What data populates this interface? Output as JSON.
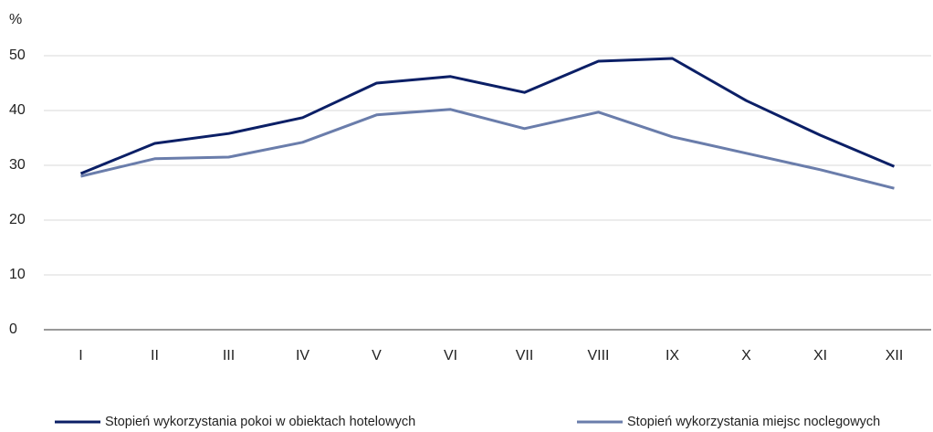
{
  "chart_data": {
    "type": "line",
    "y_label": "%",
    "categories": [
      "I",
      "II",
      "III",
      "IV",
      "V",
      "VI",
      "VII",
      "VIII",
      "IX",
      "X",
      "XI",
      "XII"
    ],
    "series": [
      {
        "name": "Stopień wykorzystania pokoi w obiektach hotelowych",
        "color": "#0b1f66",
        "values": [
          28.5,
          34.0,
          35.8,
          38.7,
          45.0,
          46.2,
          43.3,
          49.0,
          49.5,
          41.8,
          35.5,
          29.8
        ]
      },
      {
        "name": "Stopień wykorzystania miejsc noclegowych",
        "color": "#6a7dab",
        "values": [
          28.0,
          31.2,
          31.5,
          34.2,
          39.2,
          40.2,
          36.7,
          39.7,
          35.2,
          32.2,
          29.2,
          25.8
        ]
      }
    ],
    "ylim": [
      0,
      50
    ],
    "yticks": [
      0,
      10,
      20,
      30,
      40,
      50
    ],
    "grid": true,
    "legend": "bottom"
  }
}
